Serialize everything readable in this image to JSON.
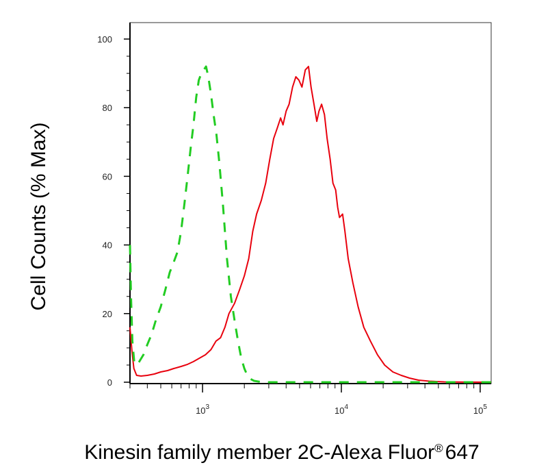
{
  "chart_data": {
    "type": "line",
    "title": "",
    "xlabel": "Kinesin family member 2C-Alexa Fluor",
    "xlabel_mark": "®",
    "xlabel_suffix": "647",
    "ylabel": "Cell Counts (% Max)",
    "x_scale": "log",
    "xlim": [
      300,
      120000
    ],
    "ylim": [
      0,
      100
    ],
    "grid": false,
    "legend": "none",
    "x_ticks": [
      {
        "base": "10",
        "exp": "3",
        "value": 1000
      },
      {
        "base": "10",
        "exp": "4",
        "value": 10000
      },
      {
        "base": "10",
        "exp": "5",
        "value": 100000
      }
    ],
    "y_ticks": [
      "0",
      "20",
      "40",
      "60",
      "80",
      "100"
    ],
    "y_tick_values": [
      0,
      20,
      40,
      60,
      80,
      100
    ],
    "series": [
      {
        "color": "#e8000d",
        "dash": "solid",
        "points": [
          [
            300,
            16
          ],
          [
            310,
            9
          ],
          [
            320,
            4
          ],
          [
            335,
            2
          ],
          [
            360,
            1.8
          ],
          [
            400,
            2
          ],
          [
            450,
            2.4
          ],
          [
            500,
            3
          ],
          [
            560,
            3.4
          ],
          [
            620,
            4
          ],
          [
            700,
            4.6
          ],
          [
            780,
            5.2
          ],
          [
            860,
            6
          ],
          [
            950,
            7
          ],
          [
            1050,
            8
          ],
          [
            1150,
            9.5
          ],
          [
            1250,
            12
          ],
          [
            1350,
            13
          ],
          [
            1450,
            16
          ],
          [
            1550,
            20
          ],
          [
            1700,
            23
          ],
          [
            1850,
            27
          ],
          [
            2000,
            31
          ],
          [
            2150,
            36
          ],
          [
            2300,
            44
          ],
          [
            2450,
            49
          ],
          [
            2650,
            53
          ],
          [
            2850,
            58
          ],
          [
            3050,
            65
          ],
          [
            3250,
            71
          ],
          [
            3450,
            74
          ],
          [
            3650,
            77
          ],
          [
            3800,
            75
          ],
          [
            4000,
            79
          ],
          [
            4200,
            81
          ],
          [
            4450,
            86
          ],
          [
            4700,
            89
          ],
          [
            4950,
            88
          ],
          [
            5200,
            86
          ],
          [
            5500,
            91
          ],
          [
            5800,
            92
          ],
          [
            6050,
            86
          ],
          [
            6350,
            81
          ],
          [
            6650,
            76
          ],
          [
            6900,
            79
          ],
          [
            7200,
            81
          ],
          [
            7550,
            78
          ],
          [
            7900,
            71
          ],
          [
            8300,
            65
          ],
          [
            8700,
            58
          ],
          [
            9100,
            56
          ],
          [
            9400,
            51
          ],
          [
            9700,
            48
          ],
          [
            10200,
            49
          ],
          [
            10600,
            44
          ],
          [
            11200,
            36
          ],
          [
            12100,
            29
          ],
          [
            13200,
            22
          ],
          [
            14500,
            16
          ],
          [
            16200,
            12
          ],
          [
            18200,
            8
          ],
          [
            20500,
            5
          ],
          [
            23500,
            3
          ],
          [
            27000,
            2
          ],
          [
            31000,
            1.2
          ],
          [
            36000,
            0.6
          ],
          [
            43000,
            0.3
          ],
          [
            55000,
            0.1
          ],
          [
            70000,
            0.05
          ],
          [
            120000,
            0
          ]
        ]
      },
      {
        "color": "#22cc22",
        "dash": "dashed",
        "points": [
          [
            300,
            40
          ],
          [
            305,
            25
          ],
          [
            312,
            12
          ],
          [
            322,
            6
          ],
          [
            335,
            5
          ],
          [
            350,
            6
          ],
          [
            375,
            8
          ],
          [
            400,
            11
          ],
          [
            430,
            14
          ],
          [
            460,
            18
          ],
          [
            500,
            22
          ],
          [
            540,
            27
          ],
          [
            580,
            32
          ],
          [
            620,
            35
          ],
          [
            660,
            38
          ],
          [
            700,
            44
          ],
          [
            740,
            52
          ],
          [
            780,
            60
          ],
          [
            820,
            68
          ],
          [
            860,
            75
          ],
          [
            900,
            83
          ],
          [
            940,
            88
          ],
          [
            980,
            90
          ],
          [
            1020,
            91
          ],
          [
            1060,
            92
          ],
          [
            1100,
            89
          ],
          [
            1150,
            84
          ],
          [
            1200,
            78
          ],
          [
            1260,
            72
          ],
          [
            1320,
            64
          ],
          [
            1400,
            52
          ],
          [
            1500,
            36
          ],
          [
            1600,
            25
          ],
          [
            1700,
            18
          ],
          [
            1800,
            12
          ],
          [
            1900,
            7
          ],
          [
            2000,
            4
          ],
          [
            2100,
            2
          ],
          [
            2200,
            1
          ],
          [
            2350,
            0.4
          ],
          [
            2600,
            0.1
          ],
          [
            3000,
            0
          ],
          [
            120000,
            0
          ]
        ]
      }
    ]
  }
}
